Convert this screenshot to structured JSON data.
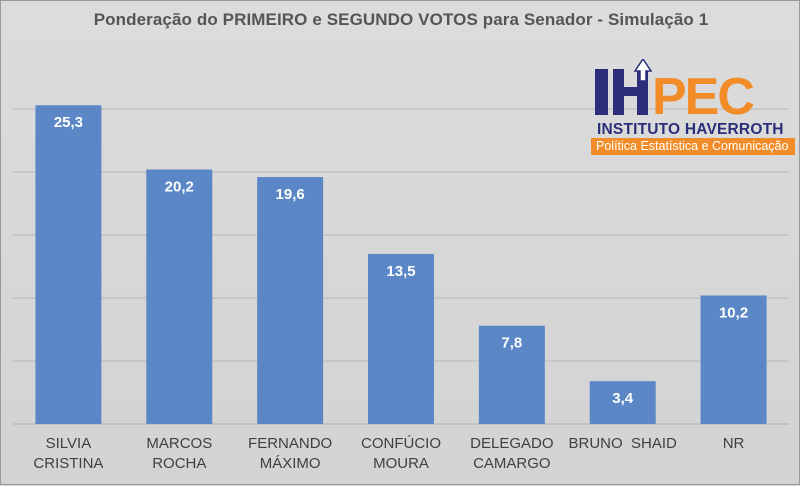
{
  "chart_data": {
    "type": "bar",
    "title": "Ponderação do PRIMEIRO e SEGUNDO VOTOS para Senador - Simulação 1",
    "categories": [
      [
        "SILVIA",
        "CRISTINA"
      ],
      [
        "MARCOS",
        "ROCHA"
      ],
      [
        "FERNANDO",
        "MÁXIMO"
      ],
      [
        "CONFÚCIO",
        "MOURA"
      ],
      [
        "DELEGADO",
        "CAMARGO"
      ],
      [
        "BRUNO  SHAID"
      ],
      [
        "NR"
      ]
    ],
    "values": [
      25.3,
      20.2,
      19.6,
      13.5,
      7.8,
      3.4,
      10.2
    ],
    "value_labels": [
      "25,3",
      "20,2",
      "19,6",
      "13,5",
      "7,8",
      "3,4",
      "10,2"
    ],
    "xlabel": "",
    "ylabel": "",
    "ylim": [
      0,
      30
    ],
    "gridlines": [
      0,
      5,
      10,
      15,
      20,
      25,
      30
    ],
    "bar_color": "#5b87c7",
    "grid_color": "#b8b8b8",
    "label_color": "#ffffff"
  },
  "logo": {
    "mark_text": "IHPEC",
    "institute": "INSTITUTO HAVERROTH",
    "tagline": "Política Estatística e Comunicação",
    "colors": {
      "navy": "#2b2f7a",
      "orange": "#f28c28"
    }
  }
}
